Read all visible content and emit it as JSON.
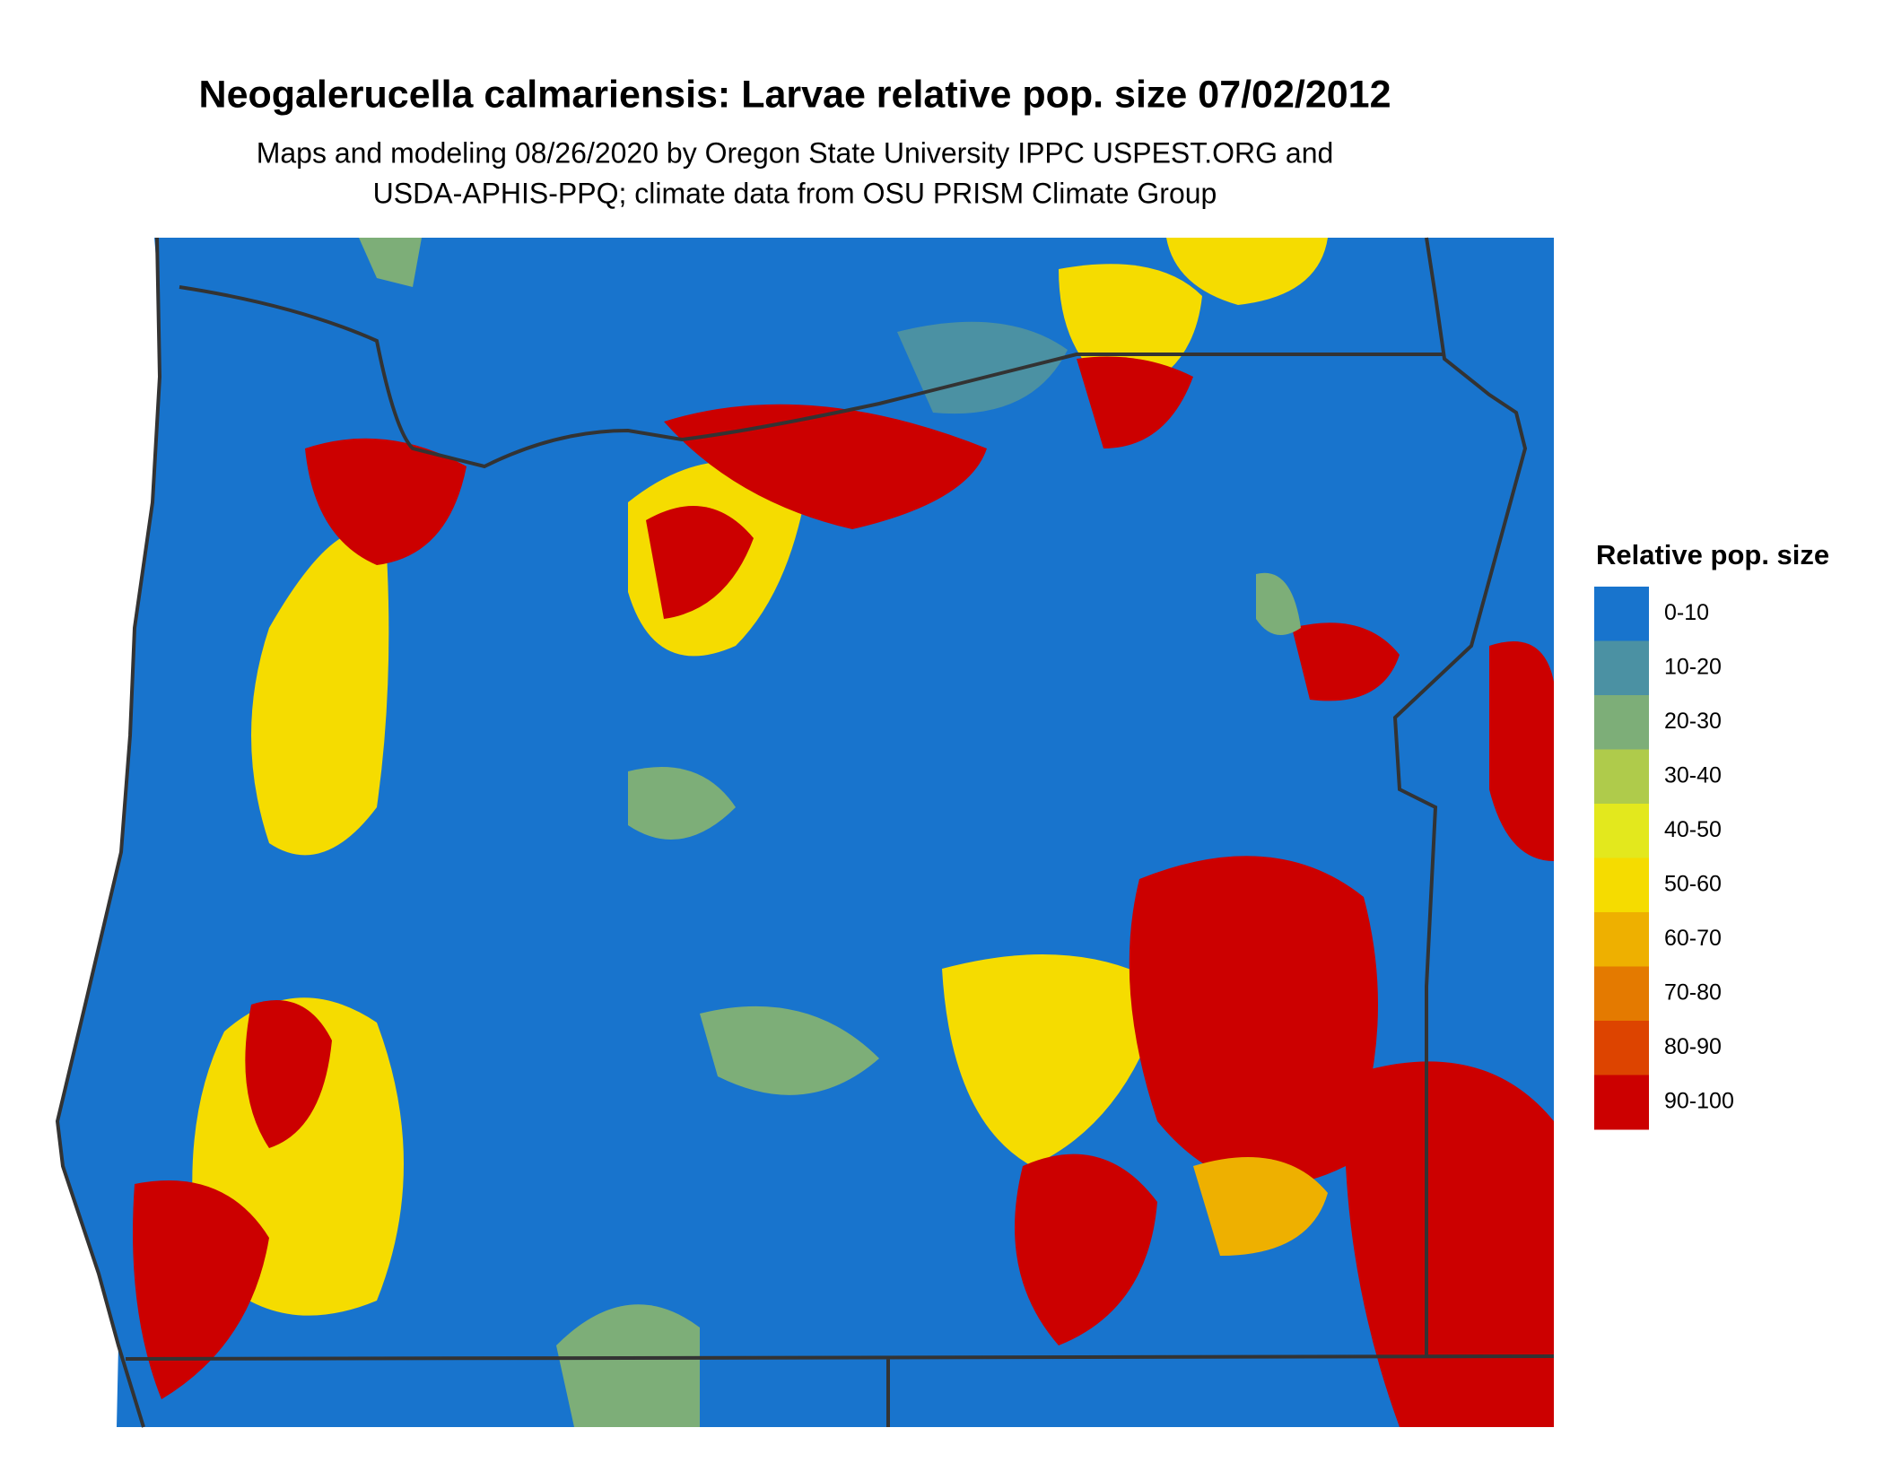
{
  "title": "Neogalerucella calmariensis: Larvae relative pop. size 07/02/2012",
  "subtitle": [
    "Maps and modeling 08/26/2020 by Oregon State University IPPC USPEST.ORG and",
    "USDA-APHIS-PPQ; climate data from OSU PRISM Climate Group"
  ],
  "legend": {
    "title": "Relative pop. size",
    "items": [
      {
        "label": "0-10",
        "color": "#1874cd"
      },
      {
        "label": "10-20",
        "color": "#4b91a3"
      },
      {
        "label": "20-30",
        "color": "#7dae78"
      },
      {
        "label": "30-40",
        "color": "#afcb4b"
      },
      {
        "label": "40-50",
        "color": "#e3e81d"
      },
      {
        "label": "50-60",
        "color": "#f5dc00"
      },
      {
        "label": "60-70",
        "color": "#eeb000"
      },
      {
        "label": "70-80",
        "color": "#e47a00"
      },
      {
        "label": "80-90",
        "color": "#dd4400"
      },
      {
        "label": "90-100",
        "color": "#cc0000"
      }
    ]
  }
}
